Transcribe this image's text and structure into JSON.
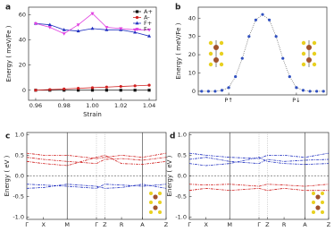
{
  "chart_data": [
    {
      "type": "line",
      "label": "a",
      "xlabel": "Strain",
      "ylabel": "Energy ( meV/Fe )",
      "x": [
        0.96,
        0.97,
        0.98,
        0.99,
        1.0,
        1.01,
        1.02,
        1.03,
        1.04
      ],
      "xlim": [
        0.955,
        1.045
      ],
      "xticks": [
        0.96,
        0.98,
        {
          "value": 1.0,
          "label": "1.00"
        },
        1.02,
        1.04
      ],
      "ylim": [
        -8,
        66
      ],
      "yticks": [
        0,
        20,
        40,
        60
      ],
      "legend": "upper right",
      "series": [
        {
          "name": "A+",
          "color": "#111111",
          "marker": "square",
          "values": [
            0,
            0,
            0,
            0,
            0,
            0,
            0,
            0,
            0
          ]
        },
        {
          "name": "A-",
          "color": "#d02020",
          "marker": "circle",
          "values": [
            0,
            0.5,
            1,
            1.5,
            2,
            2.5,
            3,
            3.5,
            4
          ]
        },
        {
          "name": "F+",
          "color": "#2030c0",
          "marker": "triangle",
          "values": [
            53,
            52,
            48,
            47,
            49,
            48,
            48,
            46,
            43
          ]
        },
        {
          "name": "F-",
          "color": "#e040e0",
          "marker": "triangle-down",
          "values": [
            53,
            50,
            45,
            52,
            61,
            50,
            49,
            48,
            48
          ]
        }
      ]
    },
    {
      "type": "line",
      "label": "b",
      "ylabel": "Energy ( meV/Fe )",
      "x": [
        0,
        1,
        2,
        3,
        4,
        5,
        6,
        7,
        8,
        9,
        10,
        11,
        12,
        13,
        14,
        15,
        16,
        17,
        18
      ],
      "xlim": [
        -0.5,
        18.5
      ],
      "xticks": [
        {
          "value": 4,
          "label": "P↑"
        },
        {
          "value": 14,
          "label": "P↓"
        }
      ],
      "ylim": [
        -2,
        46
      ],
      "yticks": [
        0,
        10,
        20,
        30,
        40
      ],
      "series": [
        {
          "color": "#3050c0",
          "marker": "circle",
          "linestyle": "dotted",
          "values": [
            0,
            0,
            0,
            0.5,
            2,
            8,
            18,
            30,
            39,
            42,
            39,
            30,
            18,
            8,
            2,
            0.5,
            0,
            0,
            0
          ]
        }
      ]
    },
    {
      "type": "line",
      "label": "c",
      "ylabel": "Energy ( eV )",
      "x": [
        0,
        0.12,
        0.29,
        0.5,
        0.56,
        0.68,
        0.83,
        1.0
      ],
      "xlim": [
        0,
        1
      ],
      "xticks": [
        {
          "value": 0,
          "label": "Γ"
        },
        {
          "value": 0.12,
          "label": "X"
        },
        {
          "value": 0.29,
          "label": "M"
        },
        {
          "value": 0.5,
          "label": "Γ"
        },
        {
          "value": 0.56,
          "label": "Z"
        },
        {
          "value": 0.68,
          "label": "R"
        },
        {
          "value": 0.83,
          "label": "A"
        },
        {
          "value": 1.0,
          "label": "Z"
        }
      ],
      "ylim": [
        -1.05,
        1.05
      ],
      "yticks": [
        {
          "value": -1.0,
          "label": "-1.0"
        },
        {
          "value": -0.5,
          "label": "-0.5"
        },
        {
          "value": 0.0,
          "label": "0.0"
        },
        {
          "value": 0.5,
          "label": "0.5"
        },
        {
          "value": 1.0,
          "label": "1.0"
        }
      ],
      "series": [
        {
          "color": "#d02020",
          "values": [
            0.55,
            0.5,
            0.5,
            0.42,
            0.45,
            0.5,
            0.45,
            0.55
          ]
        },
        {
          "color": "#d02020",
          "values": [
            0.45,
            0.4,
            0.35,
            0.3,
            0.4,
            0.42,
            0.38,
            0.45
          ]
        },
        {
          "color": "#d02020",
          "values": [
            0.35,
            0.3,
            0.25,
            0.45,
            0.5,
            0.3,
            0.28,
            0.35
          ]
        },
        {
          "color": "#2030c0",
          "values": [
            -0.2,
            -0.22,
            -0.25,
            -0.3,
            -0.2,
            -0.22,
            -0.25,
            -0.2
          ]
        },
        {
          "color": "#2030c0",
          "values": [
            -0.3,
            -0.28,
            -0.2,
            -0.25,
            -0.3,
            -0.28,
            -0.2,
            -0.3
          ]
        }
      ]
    },
    {
      "type": "line",
      "label": "d",
      "ylabel": "Energy ( eV )",
      "x": [
        0,
        0.12,
        0.29,
        0.5,
        0.56,
        0.68,
        0.83,
        1.0
      ],
      "xlim": [
        0,
        1
      ],
      "xticks": [
        {
          "value": 0,
          "label": "Γ"
        },
        {
          "value": 0.12,
          "label": "X"
        },
        {
          "value": 0.29,
          "label": "M"
        },
        {
          "value": 0.5,
          "label": "Γ"
        },
        {
          "value": 0.56,
          "label": "Z"
        },
        {
          "value": 0.68,
          "label": "R"
        },
        {
          "value": 0.83,
          "label": "A"
        },
        {
          "value": 1.0,
          "label": "Z"
        }
      ],
      "ylim": [
        -1.05,
        1.05
      ],
      "yticks": [
        {
          "value": -1.0,
          "label": "-1.0"
        },
        {
          "value": -0.5,
          "label": "-0.5"
        },
        {
          "value": 0.0,
          "label": "0.0"
        },
        {
          "value": 0.5,
          "label": "0.5"
        },
        {
          "value": 1.0,
          "label": "1.0"
        }
      ],
      "series": [
        {
          "color": "#2030c0",
          "values": [
            0.55,
            0.5,
            0.45,
            0.42,
            0.5,
            0.5,
            0.45,
            0.55
          ]
        },
        {
          "color": "#2030c0",
          "values": [
            0.4,
            0.45,
            0.35,
            0.3,
            0.4,
            0.35,
            0.38,
            0.4
          ]
        },
        {
          "color": "#2030c0",
          "values": [
            0.3,
            0.25,
            0.3,
            0.45,
            0.35,
            0.3,
            0.28,
            0.3
          ]
        },
        {
          "color": "#d02020",
          "values": [
            -0.2,
            -0.22,
            -0.2,
            -0.25,
            -0.2,
            -0.22,
            -0.25,
            -0.2
          ]
        },
        {
          "color": "#d02020",
          "values": [
            -0.35,
            -0.3,
            -0.35,
            -0.3,
            -0.35,
            -0.3,
            -0.35,
            -0.35
          ]
        }
      ]
    }
  ]
}
